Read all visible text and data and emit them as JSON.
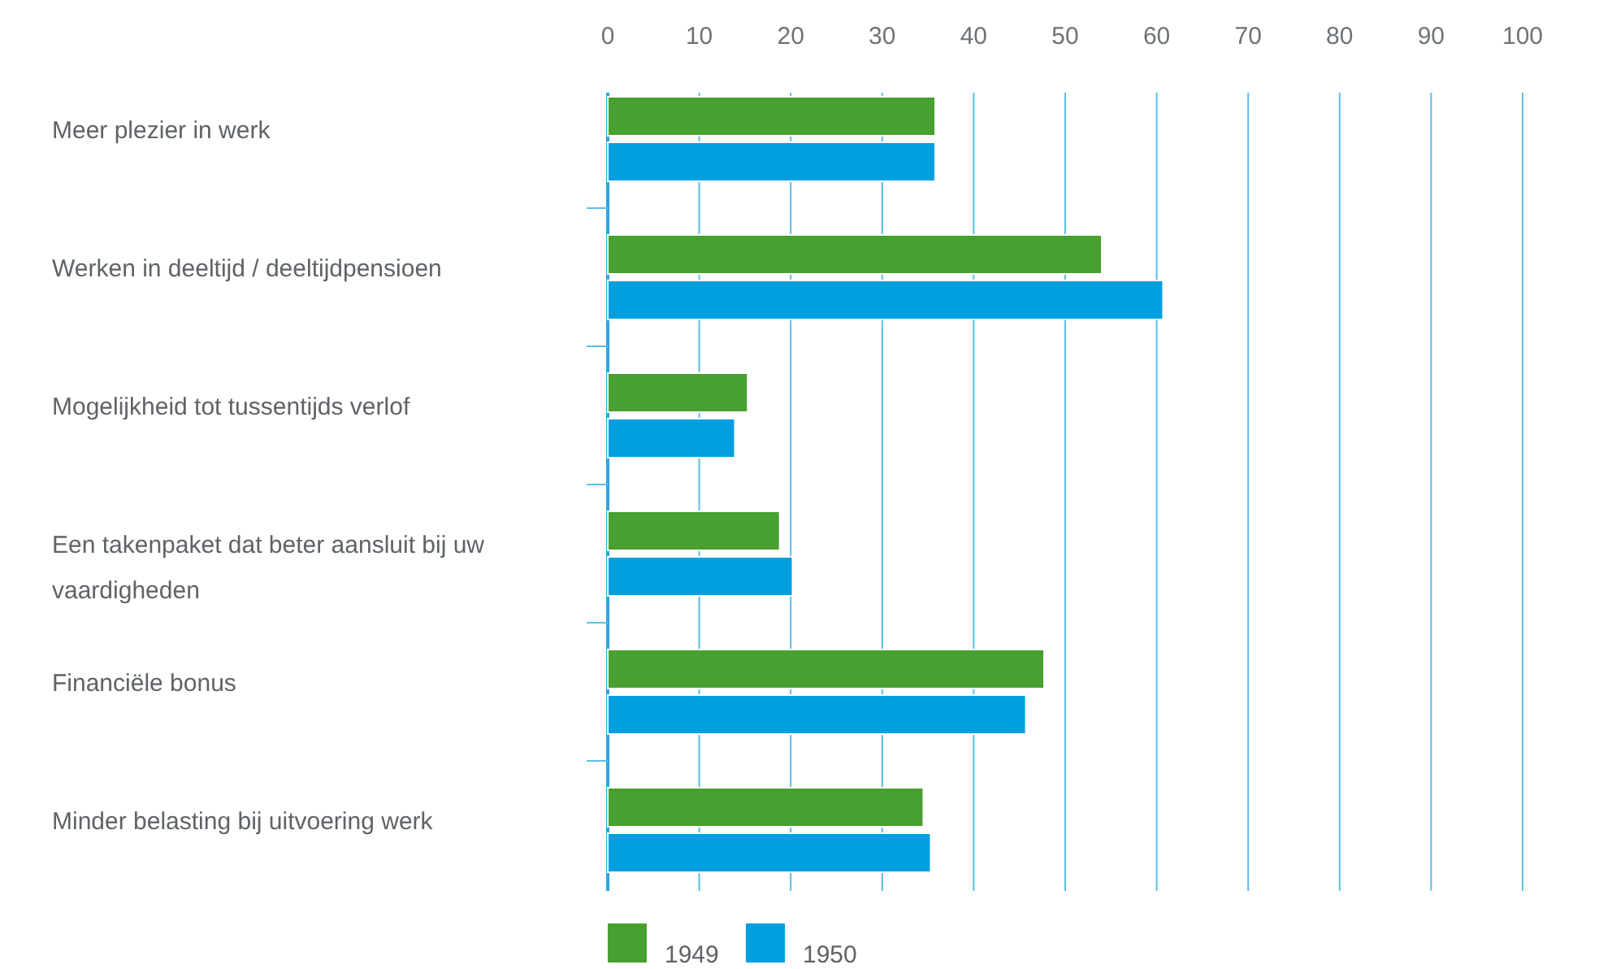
{
  "chart_data": {
    "type": "bar",
    "orientation": "horizontal",
    "categories": [
      "Meer plezier in werk",
      "Werken in deeltijd / deeltijdpensioen",
      "Mogelijkheid tot tussentijds verlof",
      "Een takenpaket dat beter aansluit bij uw vaardigheden",
      "Financiële bonus",
      "Minder belasting bij uitvoering werk"
    ],
    "series": [
      {
        "name": "1949",
        "color": "#47a02f",
        "values": [
          35.8,
          54,
          15.3,
          18.8,
          47.7,
          34.5
        ]
      },
      {
        "name": "1950",
        "color": "#009fe0",
        "values": [
          35.8,
          60.7,
          13.9,
          20.2,
          45.7,
          35.3
        ]
      }
    ],
    "xlim": [
      0,
      100
    ],
    "xticks": [
      0,
      10,
      20,
      30,
      40,
      50,
      60,
      70,
      80,
      90,
      100
    ],
    "grid": "x",
    "legend": "bottom left"
  }
}
